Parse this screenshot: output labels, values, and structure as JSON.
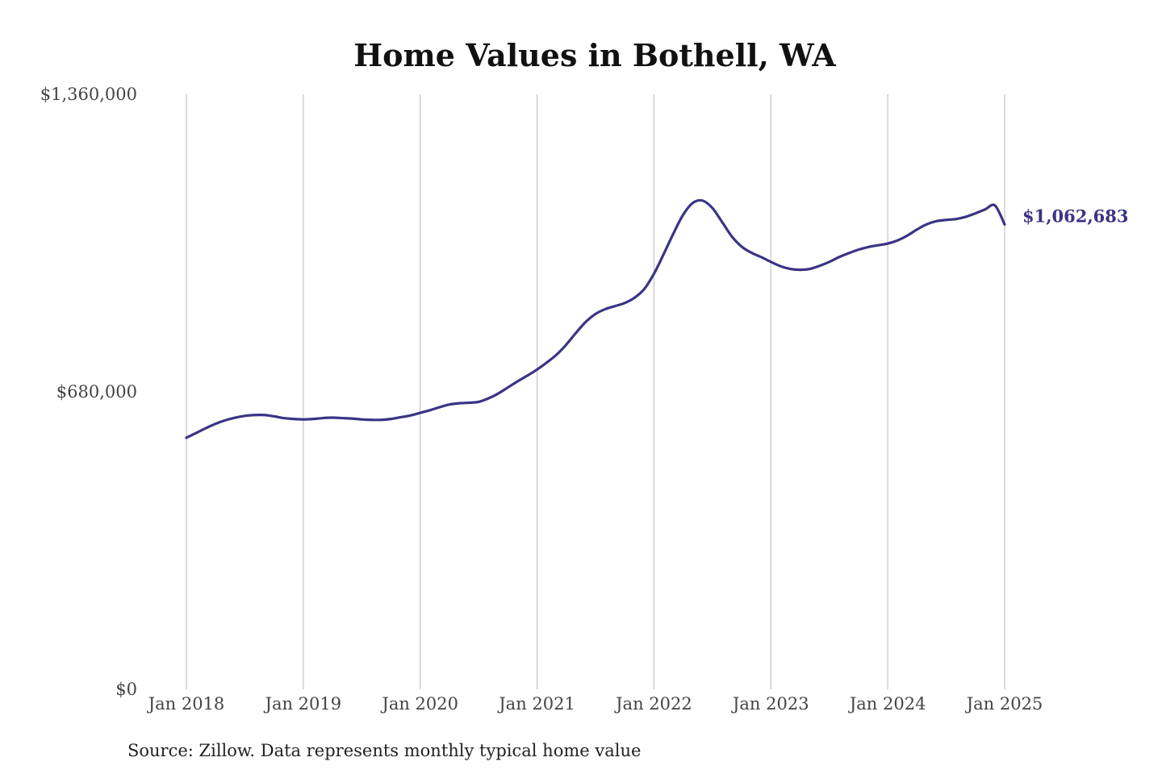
{
  "chart_data": {
    "type": "line",
    "title": "Home Values in Bothell, WA",
    "xlabel": "",
    "ylabel": "",
    "source": "Source: Zillow. Data represents monthly typical home value",
    "ylim": [
      0,
      1360000
    ],
    "y_ticks": [
      {
        "value": 0,
        "label": "$0"
      },
      {
        "value": 680000,
        "label": "$680,000"
      },
      {
        "value": 1360000,
        "label": "$1,360,000"
      }
    ],
    "x_ticks": [
      {
        "date": "2018-01",
        "label": "Jan 2018"
      },
      {
        "date": "2019-01",
        "label": "Jan 2019"
      },
      {
        "date": "2020-01",
        "label": "Jan 2020"
      },
      {
        "date": "2021-01",
        "label": "Jan 2021"
      },
      {
        "date": "2022-01",
        "label": "Jan 2022"
      },
      {
        "date": "2023-01",
        "label": "Jan 2023"
      },
      {
        "date": "2024-01",
        "label": "Jan 2024"
      },
      {
        "date": "2025-01",
        "label": "Jan 2025"
      }
    ],
    "grid": {
      "vertical": true,
      "horizontal": false
    },
    "line_color": "#3a3486",
    "end_label": "$1,062,683",
    "series": [
      {
        "x": [
          "2018-01",
          "2018-02",
          "2018-03",
          "2018-04",
          "2018-05",
          "2018-06",
          "2018-07",
          "2018-08",
          "2018-09",
          "2018-10",
          "2018-11",
          "2018-12",
          "2019-01",
          "2019-02",
          "2019-03",
          "2019-04",
          "2019-05",
          "2019-06",
          "2019-07",
          "2019-08",
          "2019-09",
          "2019-10",
          "2019-11",
          "2019-12",
          "2020-01",
          "2020-02",
          "2020-03",
          "2020-04",
          "2020-05",
          "2020-06",
          "2020-07",
          "2020-08",
          "2020-09",
          "2020-10",
          "2020-11",
          "2020-12",
          "2021-01",
          "2021-02",
          "2021-03",
          "2021-04",
          "2021-05",
          "2021-06",
          "2021-07",
          "2021-08",
          "2021-09",
          "2021-10",
          "2021-11",
          "2021-12",
          "2022-01",
          "2022-02",
          "2022-03",
          "2022-04",
          "2022-05",
          "2022-06",
          "2022-07",
          "2022-08",
          "2022-09",
          "2022-10",
          "2022-11",
          "2022-12",
          "2023-01",
          "2023-02",
          "2023-03",
          "2023-04",
          "2023-05",
          "2023-06",
          "2023-07",
          "2023-08",
          "2023-09",
          "2023-10",
          "2023-11",
          "2023-12",
          "2024-01",
          "2024-02",
          "2024-03",
          "2024-04",
          "2024-05",
          "2024-06",
          "2024-07",
          "2024-08",
          "2024-09",
          "2024-10",
          "2024-11",
          "2024-12",
          "2025-01"
        ],
        "values": [
          575000,
          586000,
          597000,
          607000,
          615000,
          621000,
          625000,
          627000,
          627000,
          624000,
          620000,
          618000,
          617000,
          618000,
          620000,
          621000,
          620000,
          619000,
          617000,
          616000,
          616000,
          618000,
          622000,
          626000,
          632000,
          638000,
          645000,
          651000,
          654000,
          655000,
          657000,
          665000,
          676000,
          690000,
          704000,
          717000,
          731000,
          747000,
          765000,
          788000,
          815000,
          840000,
          858000,
          869000,
          876000,
          883000,
          895000,
          915000,
          950000,
          995000,
          1042000,
          1085000,
          1112000,
          1117000,
          1100000,
          1068000,
          1035000,
          1012000,
          998000,
          988000,
          977000,
          967000,
          961000,
          959000,
          961000,
          968000,
          977000,
          988000,
          997000,
          1005000,
          1011000,
          1015000,
          1019000,
          1026000,
          1037000,
          1051000,
          1063000,
          1070000,
          1073000,
          1075000,
          1080000,
          1088000,
          1097000,
          1106000,
          1062683
        ]
      }
    ]
  }
}
